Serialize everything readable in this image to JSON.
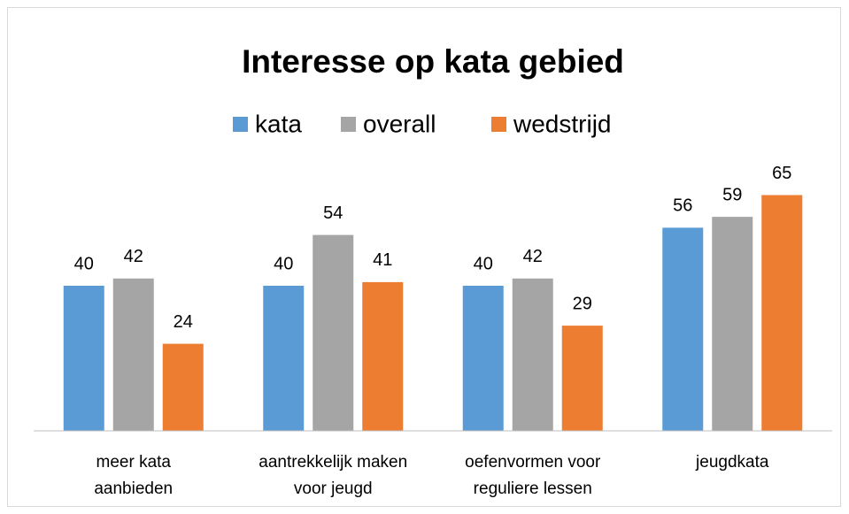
{
  "chart_data": {
    "type": "bar",
    "title": "Interesse op kata gebied",
    "categories": [
      [
        "meer kata",
        "aanbieden"
      ],
      [
        "aantrekkelijk maken",
        "voor jeugd"
      ],
      [
        "oefenvormen voor",
        "reguliere lessen"
      ],
      [
        "jeugdkata"
      ]
    ],
    "series": [
      {
        "name": "kata",
        "color": "#5b9bd5",
        "values": [
          40,
          40,
          40,
          56
        ]
      },
      {
        "name": "overall",
        "color": "#a5a5a5",
        "values": [
          42,
          54,
          42,
          59
        ]
      },
      {
        "name": "wedstrijd",
        "color": "#ed7d31",
        "values": [
          24,
          41,
          29,
          65
        ]
      }
    ],
    "ylim": [
      0,
      70
    ],
    "legend": "top"
  }
}
